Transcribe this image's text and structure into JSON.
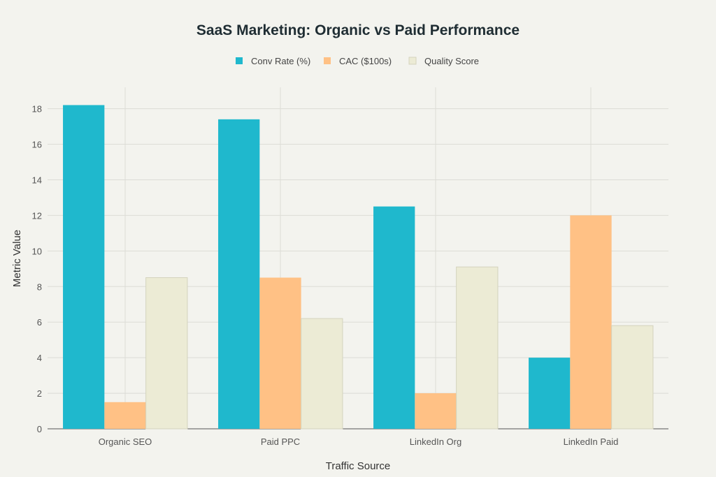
{
  "chart_data": {
    "type": "bar",
    "title": "SaaS Marketing: Organic vs Paid Performance",
    "xlabel": "Traffic Source",
    "ylabel": "Metric Value",
    "categories": [
      "Organic SEO",
      "Paid PPC",
      "LinkedIn Org",
      "LinkedIn Paid"
    ],
    "series": [
      {
        "name": "Conv Rate (%)",
        "values": [
          18.2,
          17.4,
          12.5,
          4.0
        ],
        "color": "#1fb8cd"
      },
      {
        "name": "CAC ($100s)",
        "values": [
          1.5,
          8.5,
          2.0,
          12.0
        ],
        "color": "#ffc185"
      },
      {
        "name": "Quality Score",
        "values": [
          8.5,
          6.2,
          9.1,
          5.8
        ],
        "color": "#ecebd5"
      }
    ],
    "ylim": [
      0,
      19.2
    ],
    "yticks": [
      0,
      2,
      4,
      6,
      8,
      10,
      12,
      14,
      16,
      18
    ],
    "grid": true,
    "legend": "top-center"
  }
}
